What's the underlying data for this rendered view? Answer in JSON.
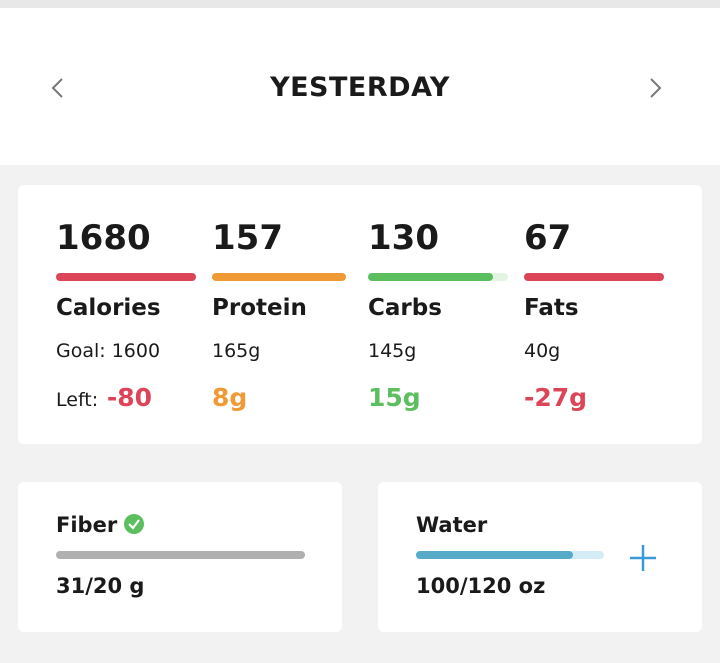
{
  "header": {
    "title": "YESTERDAY"
  },
  "macros": [
    {
      "value": "1680",
      "name": "Calories",
      "goal": "Goal: 1600",
      "left_label": "Left:",
      "left": "-80"
    },
    {
      "value": "157",
      "name": "Protein",
      "goal": "165g",
      "left": "8g"
    },
    {
      "value": "130",
      "name": "Carbs",
      "goal": "145g",
      "left": "15g"
    },
    {
      "value": "67",
      "name": "Fats",
      "goal": "40g",
      "left": "-27g"
    }
  ],
  "fiber": {
    "label": "Fiber",
    "amount": "31/20 g"
  },
  "water": {
    "label": "Water",
    "amount": "100/120 oz"
  }
}
